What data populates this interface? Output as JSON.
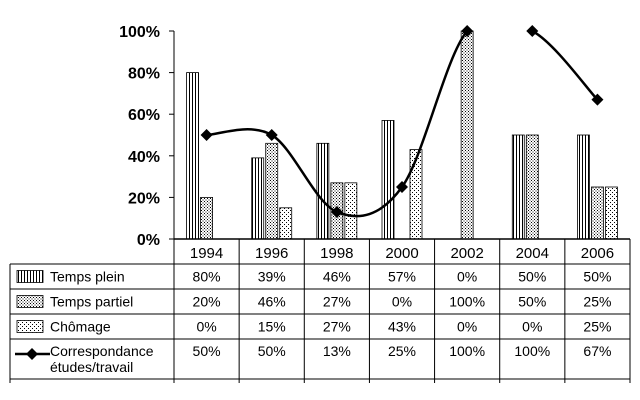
{
  "chart_data": {
    "type": "bar",
    "categories": [
      "1994",
      "1996",
      "1998",
      "2000",
      "2002",
      "2004",
      "2006"
    ],
    "ylim": [
      0,
      100
    ],
    "yticks": [
      "0%",
      "20%",
      "40%",
      "60%",
      "80%",
      "100%"
    ],
    "grid": false,
    "legend": "data-table-below",
    "series": [
      {
        "name": "Temps plein",
        "kind": "bar",
        "pattern": "vertical-lines",
        "values": [
          80,
          39,
          46,
          57,
          0,
          50,
          50
        ],
        "labels": [
          "80%",
          "39%",
          "46%",
          "57%",
          "0%",
          "50%",
          "50%"
        ]
      },
      {
        "name": "Temps partiel",
        "kind": "bar",
        "pattern": "dense-dots",
        "values": [
          20,
          46,
          27,
          0,
          100,
          50,
          25
        ],
        "labels": [
          "20%",
          "46%",
          "27%",
          "0%",
          "100%",
          "50%",
          "25%"
        ]
      },
      {
        "name": "Chômage",
        "kind": "bar",
        "pattern": "sparse-dots",
        "values": [
          0,
          15,
          27,
          43,
          0,
          0,
          25
        ],
        "labels": [
          "0%",
          "15%",
          "27%",
          "43%",
          "0%",
          "0%",
          "25%"
        ]
      },
      {
        "name_lines": [
          "Correspondance",
          "études/travail"
        ],
        "kind": "line",
        "marker": "diamond",
        "smooth": true,
        "values": [
          50,
          50,
          13,
          25,
          100,
          100,
          67
        ],
        "labels": [
          "50%",
          "50%",
          "13%",
          "25%",
          "100%",
          "100%",
          "67%"
        ]
      }
    ]
  }
}
